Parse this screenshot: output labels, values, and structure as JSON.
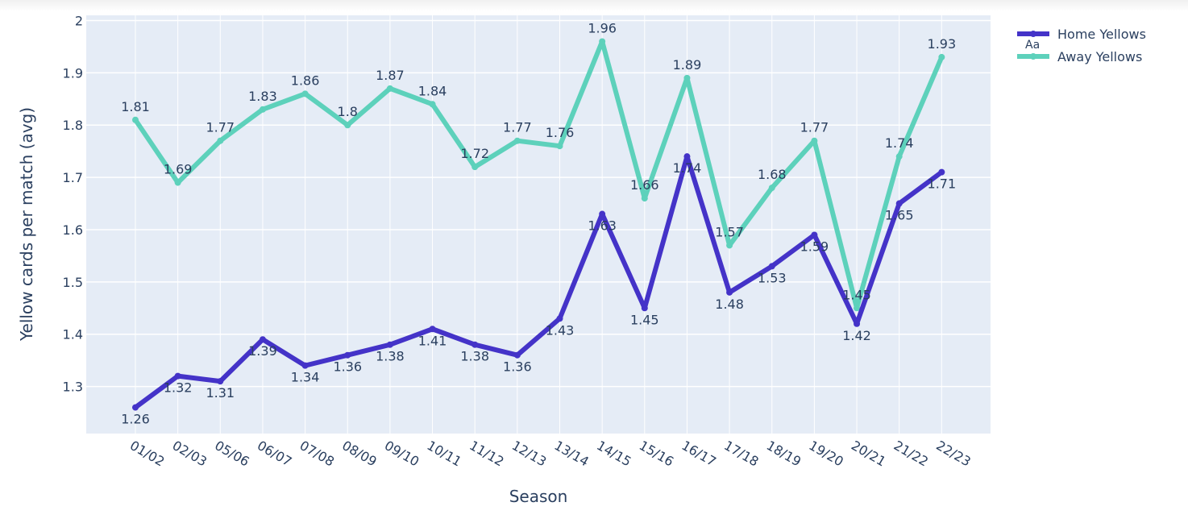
{
  "chart_data": {
    "type": "line",
    "categories": [
      "01/02",
      "02/03",
      "05/06",
      "06/07",
      "07/08",
      "08/09",
      "09/10",
      "10/11",
      "11/12",
      "12/13",
      "13/14",
      "14/15",
      "15/16",
      "16/17",
      "17/18",
      "18/19",
      "19/20",
      "20/21",
      "21/22",
      "22/23"
    ],
    "series": [
      {
        "name": "Home Yellows",
        "color": "#4433c8",
        "values": [
          1.26,
          1.32,
          1.31,
          1.39,
          1.34,
          1.36,
          1.38,
          1.41,
          1.38,
          1.36,
          1.43,
          1.63,
          1.45,
          1.74,
          1.48,
          1.53,
          1.59,
          1.42,
          1.65,
          1.71
        ],
        "labels": [
          "1.26",
          "1.32",
          "1.31",
          "1.39",
          "1.34",
          "1.36",
          "1.38",
          "1.41",
          "1.38",
          "1.36",
          "1.43",
          "1.63",
          "1.45",
          "1.74",
          "1.48",
          "1.53",
          "1.59",
          "1.42",
          "1.65",
          "1.71"
        ]
      },
      {
        "name": "Away Yellows",
        "color": "#5dd1bb",
        "values": [
          1.81,
          1.69,
          1.77,
          1.83,
          1.86,
          1.8,
          1.87,
          1.84,
          1.72,
          1.77,
          1.76,
          1.96,
          1.66,
          1.89,
          1.57,
          1.68,
          1.77,
          1.45,
          1.74,
          1.93
        ],
        "labels": [
          "1.81",
          "1.69",
          "1.77",
          "1.83",
          "1.86",
          "1.8",
          "1.87",
          "1.84",
          "1.72",
          "1.77",
          "1.76",
          "1.96",
          "1.66",
          "1.89",
          "1.57",
          "1.68",
          "1.77",
          "1.45",
          "1.74",
          "1.93"
        ]
      }
    ],
    "xlabel": "Season",
    "ylabel": "Yellow cards per match (avg)",
    "ylim": [
      1.21,
      2.01
    ],
    "yticks": [
      "1.3",
      "1.4",
      "1.5",
      "1.6",
      "1.7",
      "1.8",
      "1.9",
      "2"
    ],
    "legend_placement": "top-right",
    "legend_marker_text": "Aa",
    "grid": true,
    "plot_bg": "#e5ecf6"
  }
}
